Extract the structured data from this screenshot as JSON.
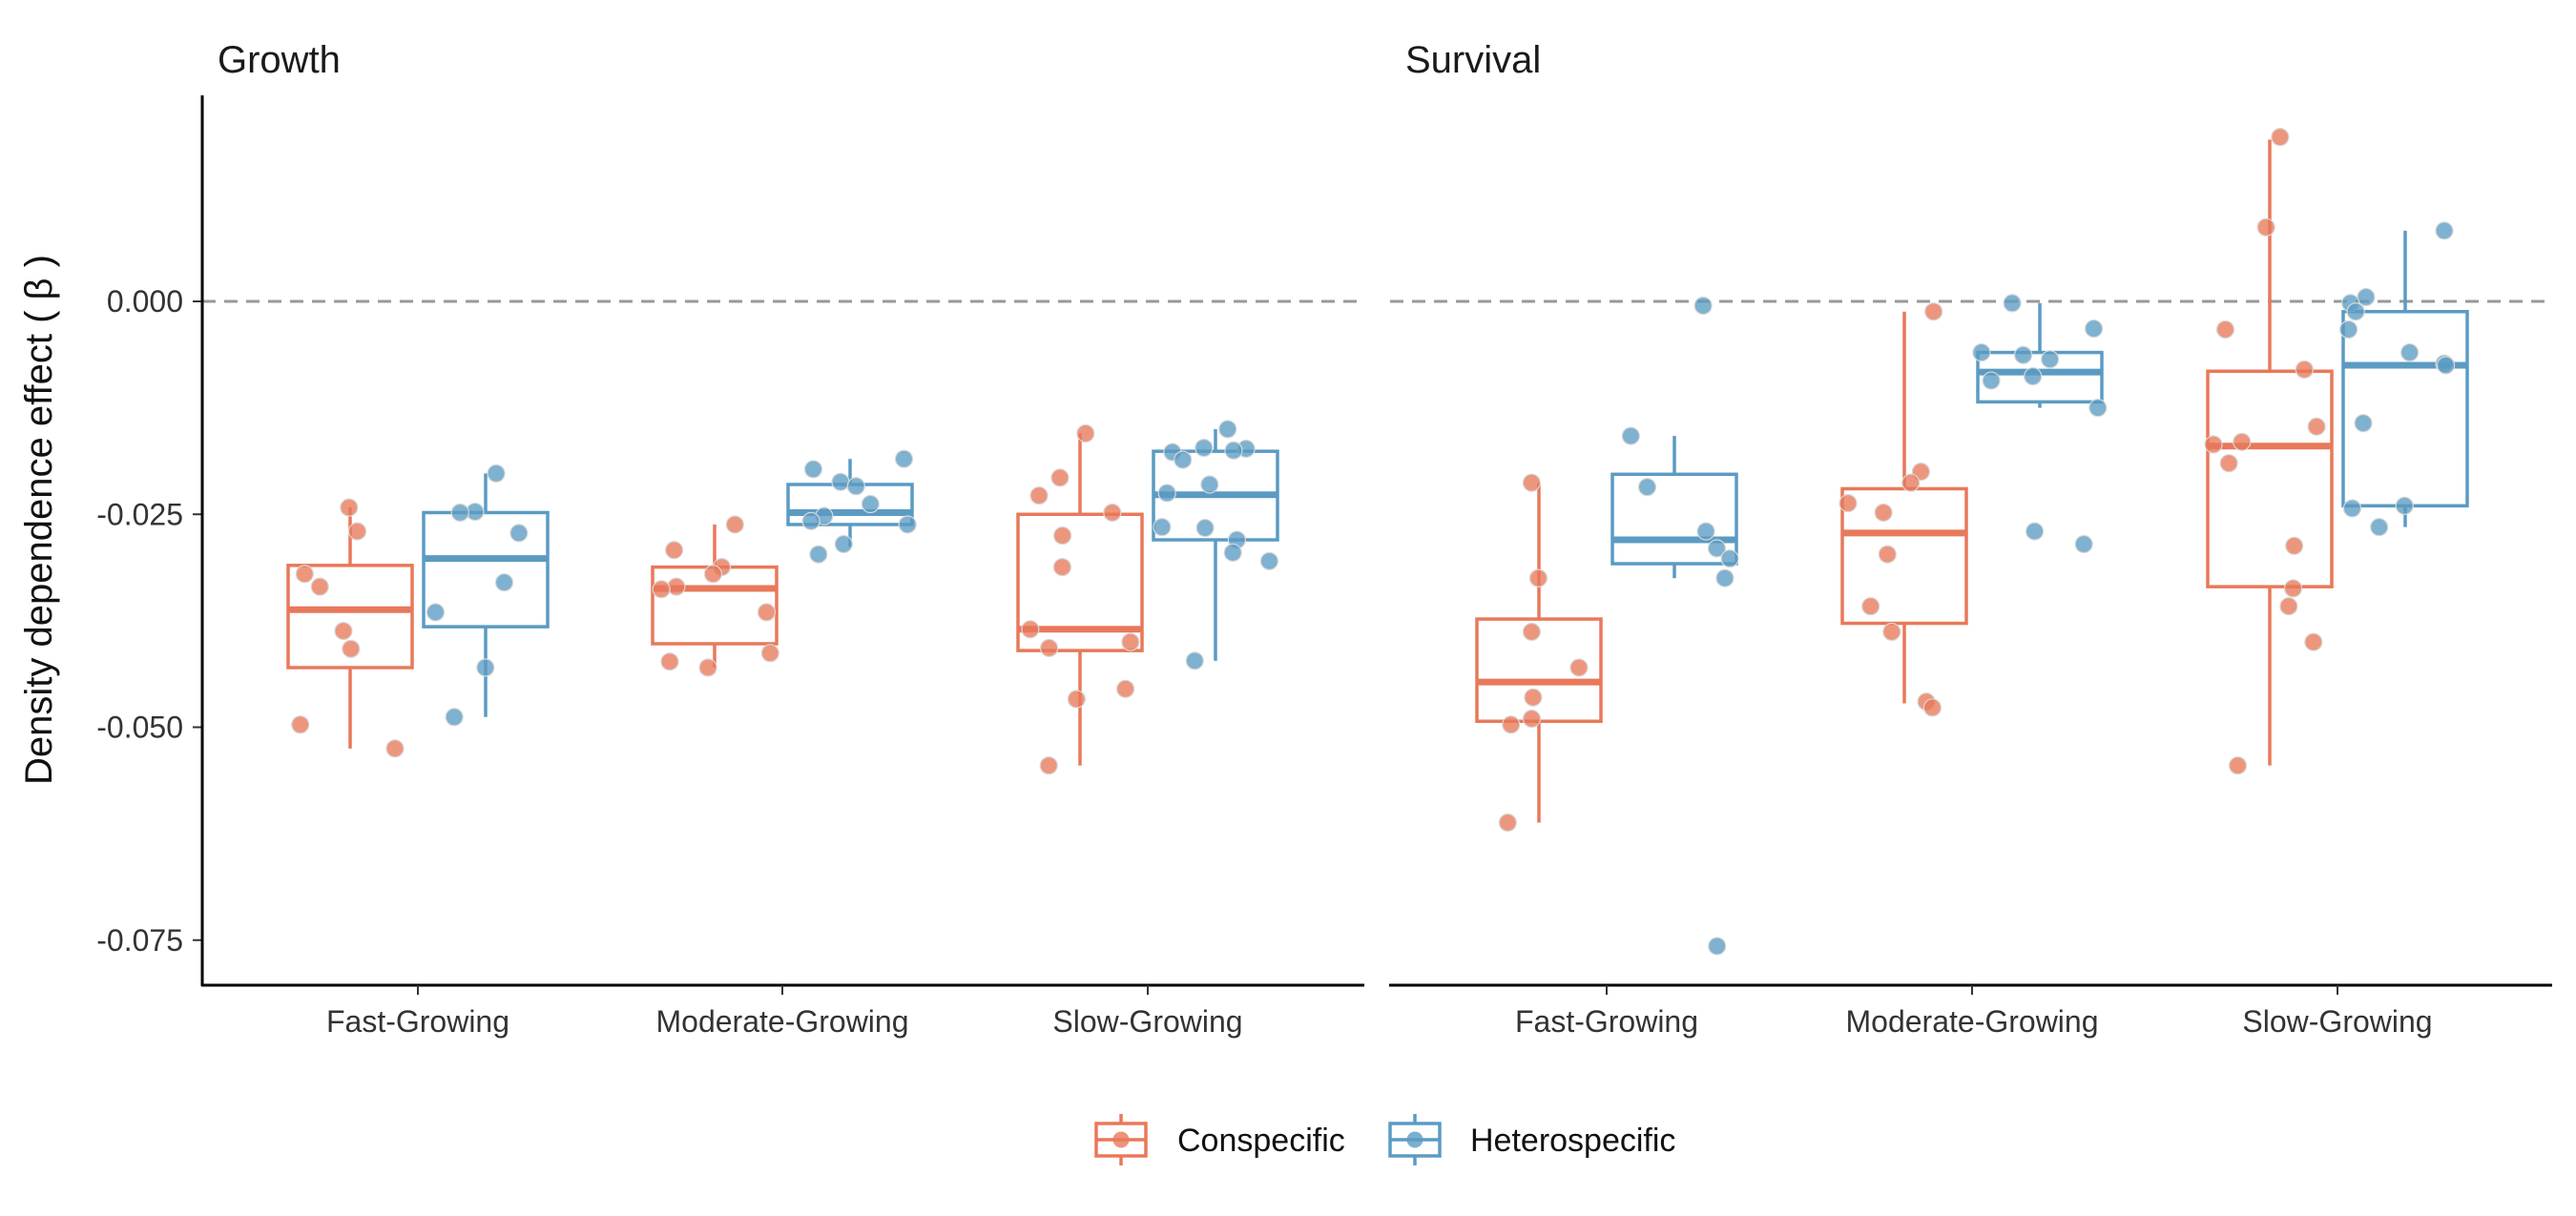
{
  "chart_data": {
    "type": "boxplot",
    "ylabel": "Density dependence effect ( β )",
    "xlabel": "",
    "ylim": [
      -0.08,
      0.024
    ],
    "yticks": [
      0.0,
      -0.025,
      -0.05,
      -0.075
    ],
    "ytick_labels": [
      "0.000",
      "-0.025",
      "-0.050",
      "-0.075"
    ],
    "reference_line": 0.0,
    "categories": [
      "Fast-Growing",
      "Moderate-Growing",
      "Slow-Growing"
    ],
    "colors": {
      "Conspecific": "#e8795a",
      "Heterospecific": "#5b9bc3",
      "ref_line": "#999999",
      "axis": "#000000"
    },
    "legend": {
      "position": "bottom",
      "entries": [
        "Conspecific",
        "Heterospecific"
      ]
    },
    "panels": [
      {
        "title": "Growth",
        "groups": [
          {
            "category": "Fast-Growing",
            "series": "Conspecific",
            "box": {
              "whisker_low": -0.0525,
              "q1": -0.043,
              "median": -0.0362,
              "q3": -0.031,
              "whisker_high": -0.0242
            },
            "points": [
              -0.0242,
              -0.027,
              -0.032,
              -0.0335,
              -0.0387,
              -0.0408,
              -0.0497,
              -0.0525
            ]
          },
          {
            "category": "Fast-Growing",
            "series": "Heterospecific",
            "box": {
              "whisker_low": -0.0488,
              "q1": -0.0382,
              "median": -0.0302,
              "q3": -0.0248,
              "whisker_high": -0.0202
            },
            "points": [
              -0.0202,
              -0.0247,
              -0.0248,
              -0.0272,
              -0.033,
              -0.0365,
              -0.043,
              -0.0488
            ]
          },
          {
            "category": "Moderate-Growing",
            "series": "Conspecific",
            "box": {
              "whisker_low": -0.043,
              "q1": -0.0402,
              "median": -0.0337,
              "q3": -0.0312,
              "whisker_high": -0.0262
            },
            "points": [
              -0.0262,
              -0.0292,
              -0.0312,
              -0.032,
              -0.0335,
              -0.0338,
              -0.0365,
              -0.0413,
              -0.0423,
              -0.043
            ]
          },
          {
            "category": "Moderate-Growing",
            "series": "Heterospecific",
            "box": {
              "whisker_low": -0.0288,
              "q1": -0.0262,
              "median": -0.0248,
              "q3": -0.0215,
              "whisker_high": -0.0185
            },
            "points": [
              -0.0185,
              -0.0197,
              -0.0212,
              -0.0217,
              -0.0238,
              -0.0252,
              -0.0258,
              -0.0262,
              -0.0285,
              -0.0297
            ]
          },
          {
            "category": "Slow-Growing",
            "series": "Conspecific",
            "box": {
              "whisker_low": -0.0545,
              "q1": -0.041,
              "median": -0.0385,
              "q3": -0.025,
              "whisker_high": -0.0155
            },
            "points": [
              -0.0155,
              -0.0207,
              -0.0228,
              -0.0248,
              -0.0275,
              -0.0312,
              -0.0385,
              -0.04,
              -0.0407,
              -0.0455,
              -0.0467,
              -0.0545
            ]
          },
          {
            "category": "Slow-Growing",
            "series": "Heterospecific",
            "box": {
              "whisker_low": -0.0422,
              "q1": -0.028,
              "median": -0.0227,
              "q3": -0.0176,
              "whisker_high": -0.015
            },
            "points": [
              -0.015,
              -0.0172,
              -0.0173,
              -0.0175,
              -0.0177,
              -0.0186,
              -0.0215,
              -0.0225,
              -0.0265,
              -0.0266,
              -0.028,
              -0.0295,
              -0.0305,
              -0.0422
            ]
          }
        ]
      },
      {
        "title": "Survival",
        "groups": [
          {
            "category": "Fast-Growing",
            "series": "Conspecific",
            "box": {
              "whisker_low": -0.0612,
              "q1": -0.0493,
              "median": -0.0447,
              "q3": -0.0373,
              "whisker_high": -0.0213
            },
            "points": [
              -0.0213,
              -0.0325,
              -0.0388,
              -0.043,
              -0.0465,
              -0.049,
              -0.0497,
              -0.0612
            ]
          },
          {
            "category": "Fast-Growing",
            "series": "Heterospecific",
            "box": {
              "whisker_low": -0.0325,
              "q1": -0.0308,
              "median": -0.028,
              "q3": -0.0203,
              "whisker_high": -0.0158
            },
            "points": [
              -0.0005,
              -0.0158,
              -0.0218,
              -0.027,
              -0.029,
              -0.0302,
              -0.0325,
              -0.0757
            ]
          },
          {
            "category": "Moderate-Growing",
            "series": "Conspecific",
            "box": {
              "whisker_low": -0.0472,
              "q1": -0.0378,
              "median": -0.0272,
              "q3": -0.022,
              "whisker_high": -0.0012
            },
            "points": [
              -0.0012,
              -0.02,
              -0.0213,
              -0.0237,
              -0.0248,
              -0.0297,
              -0.0358,
              -0.0388,
              -0.047,
              -0.0477
            ]
          },
          {
            "category": "Moderate-Growing",
            "series": "Heterospecific",
            "box": {
              "whisker_low": -0.0125,
              "q1": -0.0118,
              "median": -0.0083,
              "q3": -0.006,
              "whisker_high": -0.0002
            },
            "points": [
              -0.0002,
              -0.0032,
              -0.006,
              -0.0063,
              -0.0068,
              -0.0088,
              -0.0093,
              -0.0125,
              -0.027,
              -0.0285
            ]
          },
          {
            "category": "Slow-Growing",
            "series": "Conspecific",
            "box": {
              "whisker_low": -0.0545,
              "q1": -0.0335,
              "median": -0.017,
              "q3": -0.0082,
              "whisker_high": 0.019
            },
            "points": [
              0.0193,
              0.0087,
              -0.0033,
              -0.008,
              -0.0147,
              -0.0165,
              -0.0168,
              -0.019,
              -0.0287,
              -0.0337,
              -0.0358,
              -0.04,
              -0.0545
            ]
          },
          {
            "category": "Slow-Growing",
            "series": "Heterospecific",
            "box": {
              "whisker_low": -0.0265,
              "q1": -0.024,
              "median": -0.0075,
              "q3": -0.0012,
              "whisker_high": 0.0083
            },
            "points": [
              0.0083,
              0.0005,
              -0.0002,
              -0.0012,
              -0.0033,
              -0.006,
              -0.0073,
              -0.0075,
              -0.0143,
              -0.024,
              -0.0243,
              -0.0265
            ]
          }
        ]
      }
    ]
  }
}
